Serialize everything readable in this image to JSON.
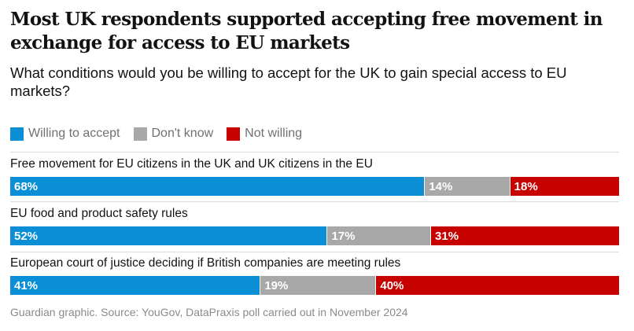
{
  "chart_data": {
    "type": "bar",
    "orientation": "horizontal",
    "stacked": true,
    "title": "Most UK respondents supported accepting free movement in exchange for access to EU markets",
    "subtitle": "What conditions would you be willing to accept for the UK to gain special access to EU markets?",
    "legend": [
      {
        "name": "Willing to accept",
        "color": "#0a8fd6"
      },
      {
        "name": "Don't know",
        "color": "#a8a8a8"
      },
      {
        "name": "Not willing",
        "color": "#c70000"
      }
    ],
    "categories": [
      "Free movement for EU citizens in the UK and UK citizens in the EU",
      "EU food and product safety rules",
      "European court of justice deciding if British companies are meeting rules"
    ],
    "series": [
      {
        "name": "Willing to accept",
        "color": "#0a8fd6",
        "values": [
          68,
          52,
          41
        ],
        "labels": [
          "68%",
          "52%",
          "41%"
        ]
      },
      {
        "name": "Don't know",
        "color": "#a8a8a8",
        "values": [
          14,
          17,
          19
        ],
        "labels": [
          "14%",
          "17%",
          "19%"
        ]
      },
      {
        "name": "Not willing",
        "color": "#c70000",
        "values": [
          18,
          31,
          40
        ],
        "labels": [
          "18%",
          "31%",
          "40%"
        ]
      }
    ],
    "source": "Guardian graphic. Source: YouGov, DataPraxis poll carried out in November 2024"
  }
}
